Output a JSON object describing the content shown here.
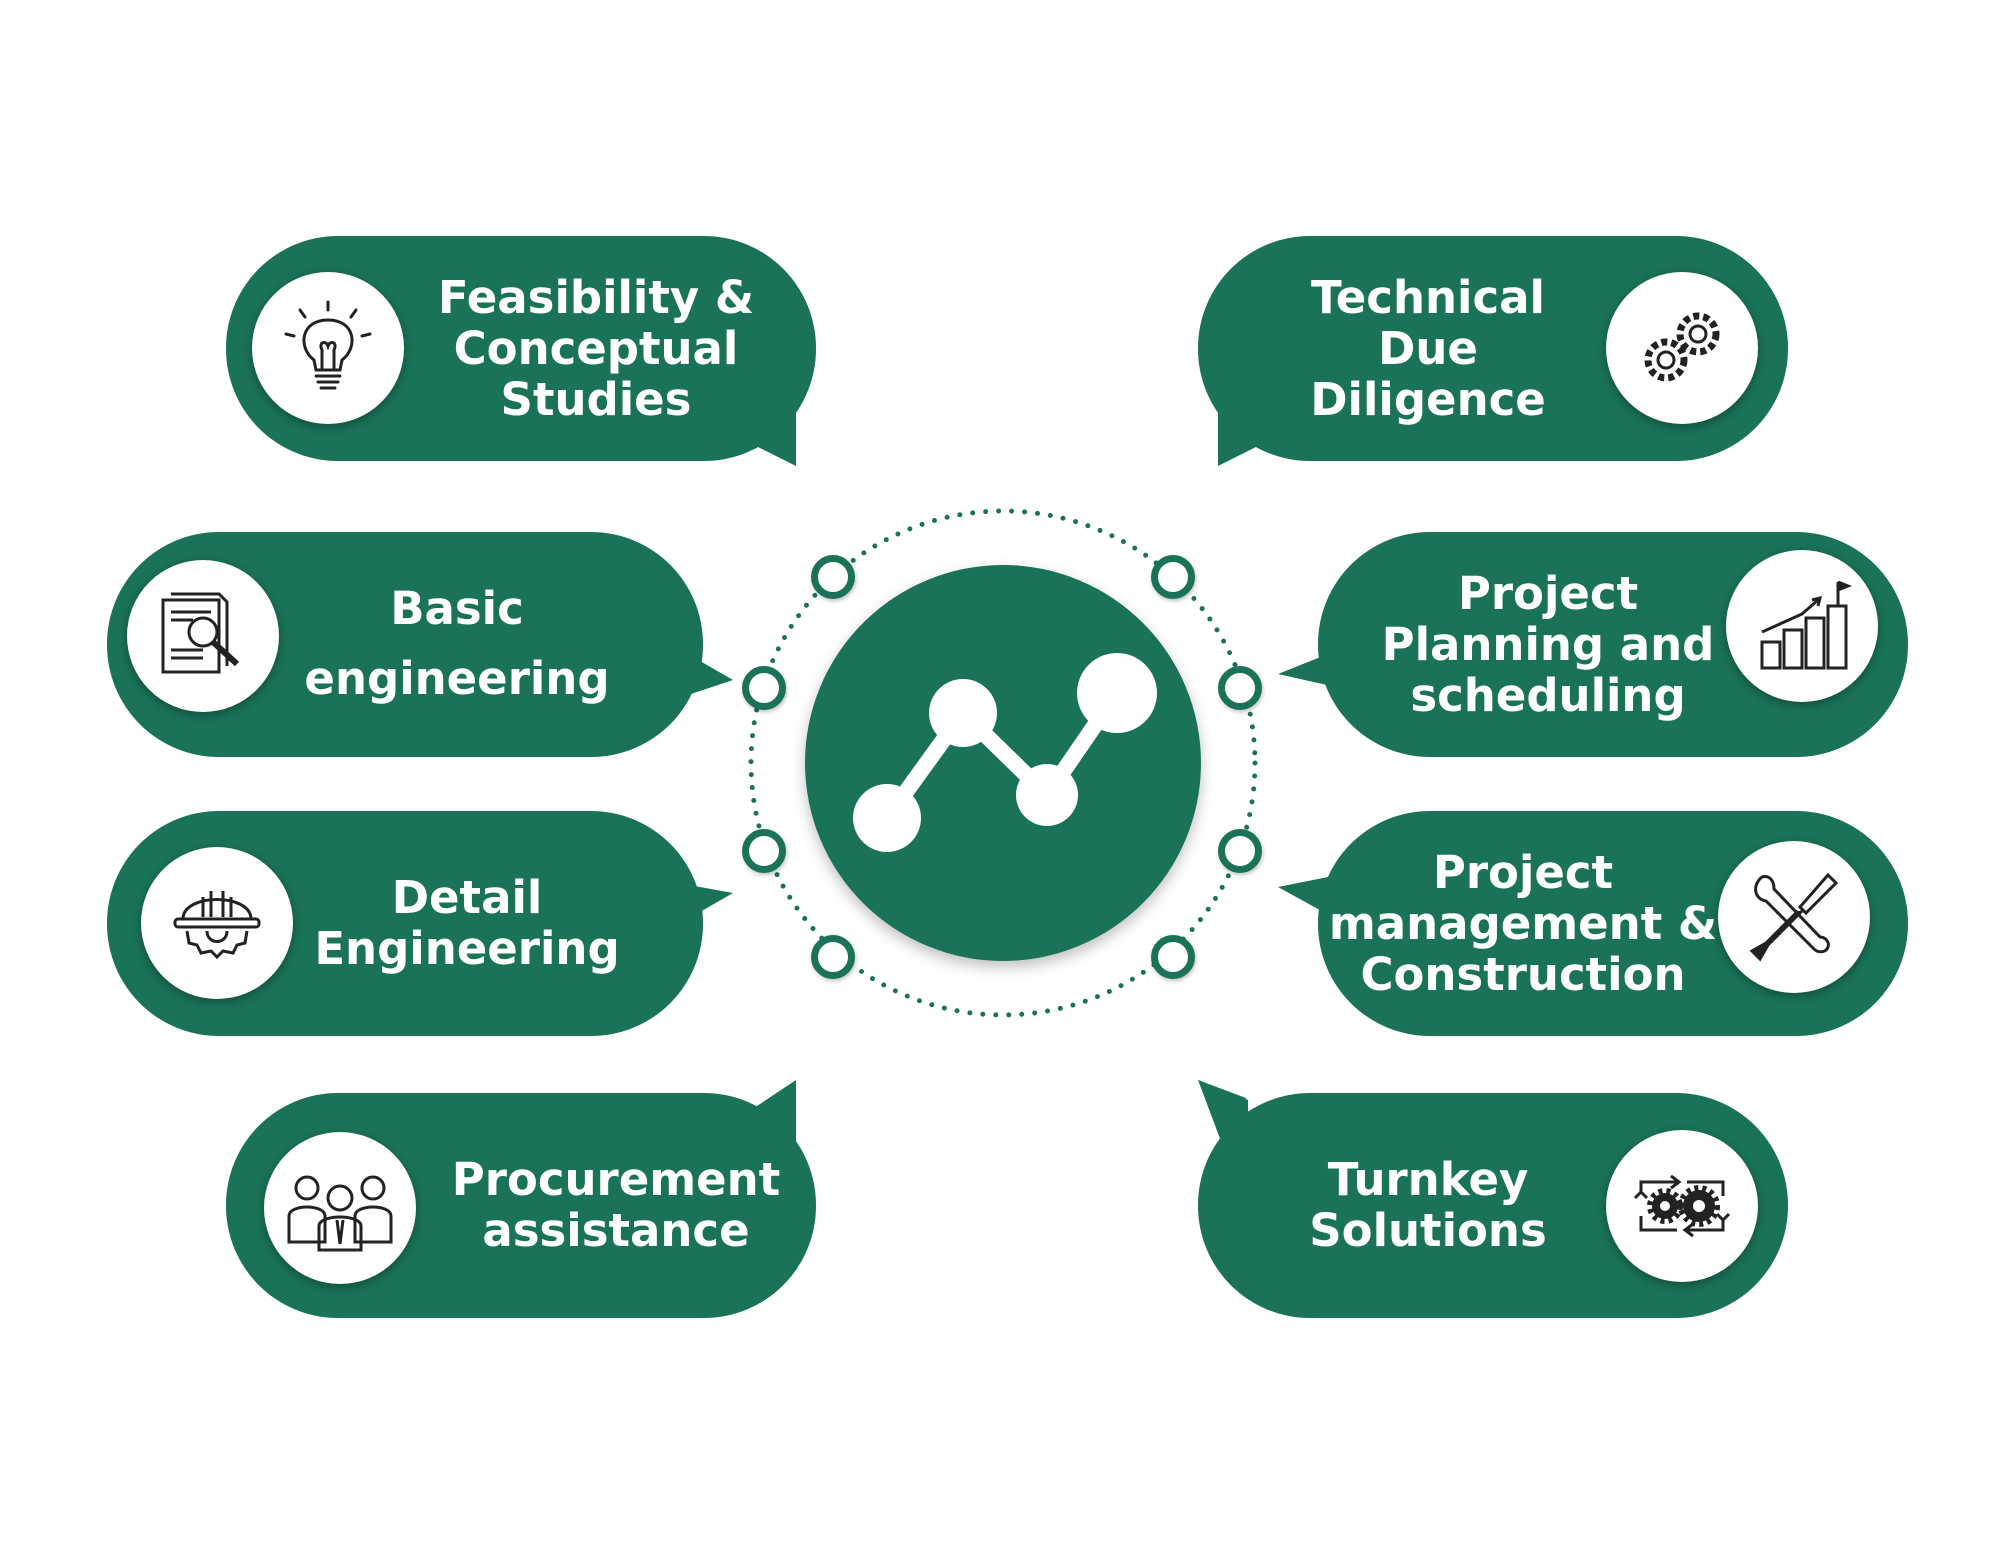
{
  "diagram": {
    "colors": {
      "accent": "#1a7358",
      "background": "#ffffff",
      "text": "#ffffff"
    },
    "hub": {
      "icon": "trend-line-icon"
    },
    "services": [
      {
        "id": "feasibility",
        "lines": [
          "Feasibility &",
          "Conceptual",
          "Studies"
        ],
        "icon": "lightbulb-icon"
      },
      {
        "id": "basic",
        "lines": [
          "Basic",
          "engineering"
        ],
        "icon": "document-search-icon"
      },
      {
        "id": "detail",
        "lines": [
          "Detail",
          "Engineering"
        ],
        "icon": "hardhat-gear-icon"
      },
      {
        "id": "procurement",
        "lines": [
          "Procurement",
          "assistance"
        ],
        "icon": "people-group-icon"
      },
      {
        "id": "due-diligence",
        "lines": [
          "Technical",
          "Due",
          "Diligence"
        ],
        "icon": "gears-icon"
      },
      {
        "id": "planning",
        "lines": [
          "Project",
          "Planning and",
          "scheduling"
        ],
        "icon": "bar-chart-flag-icon"
      },
      {
        "id": "management",
        "lines": [
          "Project",
          "management &",
          "Construction"
        ],
        "icon": "wrench-screwdriver-icon"
      },
      {
        "id": "turnkey",
        "lines": [
          "Turnkey",
          "Solutions"
        ],
        "icon": "gears-cycle-icon"
      }
    ]
  }
}
